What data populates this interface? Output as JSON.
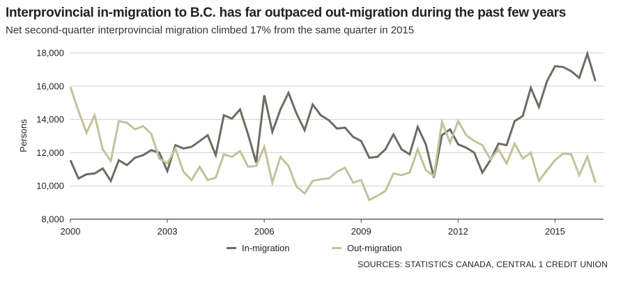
{
  "title": "Interprovincial in-migration to B.C. has far outpaced out-migration during the past few years",
  "subtitle": "Net second-quarter interprovincial migration climbed 17% from the same quarter in 2015",
  "source": "SOURCES:  STATISTICS CANADA, CENTRAL 1 CREDIT UNION",
  "colors": {
    "in": "#6e6a64",
    "out": "#c2c29b",
    "grid": "#cfcfcf"
  },
  "chart_data": {
    "type": "line",
    "title": "Interprovincial in-migration to B.C. has far outpaced out-migration during the past few years",
    "ylabel": "Persons",
    "xlabel": "",
    "ylim": [
      8000,
      18000
    ],
    "xlim": [
      2000,
      2016.5
    ],
    "yticks": [
      8000,
      10000,
      12000,
      14000,
      16000,
      18000
    ],
    "ytick_labels": [
      "8,000",
      "10,000",
      "12,000",
      "14,000",
      "16,000",
      "18,000"
    ],
    "xticks": [
      2000,
      2003,
      2006,
      2009,
      2012,
      2015
    ],
    "xtick_labels": [
      "2000",
      "2003",
      "2006",
      "2009",
      "2012",
      "2015"
    ],
    "grid": "horizontal",
    "legend": "bottom",
    "x": [
      2000.0,
      2000.25,
      2000.5,
      2000.75,
      2001.0,
      2001.25,
      2001.5,
      2001.75,
      2002.0,
      2002.25,
      2002.5,
      2002.75,
      2003.0,
      2003.25,
      2003.5,
      2003.75,
      2004.0,
      2004.25,
      2004.5,
      2004.75,
      2005.0,
      2005.25,
      2005.5,
      2005.75,
      2006.0,
      2006.25,
      2006.5,
      2006.75,
      2007.0,
      2007.25,
      2007.5,
      2007.75,
      2008.0,
      2008.25,
      2008.5,
      2008.75,
      2009.0,
      2009.25,
      2009.5,
      2009.75,
      2010.0,
      2010.25,
      2010.5,
      2010.75,
      2011.0,
      2011.25,
      2011.5,
      2011.75,
      2012.0,
      2012.25,
      2012.5,
      2012.75,
      2013.0,
      2013.25,
      2013.5,
      2013.75,
      2014.0,
      2014.25,
      2014.5,
      2014.75,
      2015.0,
      2015.25,
      2015.5,
      2015.75,
      2016.0,
      2016.25
    ],
    "series": [
      {
        "name": "In-migration",
        "values": [
          11550,
          10450,
          10700,
          10750,
          11050,
          10300,
          11550,
          11250,
          11700,
          11850,
          12150,
          12000,
          10900,
          12450,
          12250,
          12350,
          12700,
          13050,
          11850,
          14250,
          14050,
          14600,
          13100,
          11400,
          15450,
          13250,
          14600,
          15600,
          14350,
          13350,
          14900,
          14250,
          13950,
          13450,
          13500,
          12950,
          12700,
          11700,
          11750,
          12200,
          13100,
          12200,
          11900,
          13550,
          12500,
          10500,
          13050,
          13400,
          12500,
          12300,
          12000,
          10800,
          11550,
          12550,
          12450,
          13900,
          14200,
          15900,
          14750,
          16300,
          17200,
          17150,
          16900,
          16500,
          17950,
          16300
        ]
      },
      {
        "name": "Out-migration",
        "values": [
          15950,
          14500,
          13200,
          14250,
          12200,
          11500,
          13900,
          13800,
          13400,
          13600,
          13150,
          11650,
          11350,
          12250,
          10850,
          10350,
          11150,
          10350,
          10500,
          11900,
          11750,
          12100,
          11150,
          11200,
          12350,
          10200,
          11750,
          11200,
          9950,
          9550,
          10300,
          10400,
          10450,
          10850,
          11100,
          10200,
          10350,
          9150,
          9400,
          9700,
          10750,
          10650,
          10800,
          12200,
          10950,
          10600,
          13850,
          12600,
          13900,
          13050,
          12700,
          12450,
          11600,
          12200,
          11350,
          12550,
          11650,
          12000,
          10300,
          10950,
          11550,
          11950,
          11900,
          10650,
          11750,
          10200
        ]
      }
    ]
  }
}
